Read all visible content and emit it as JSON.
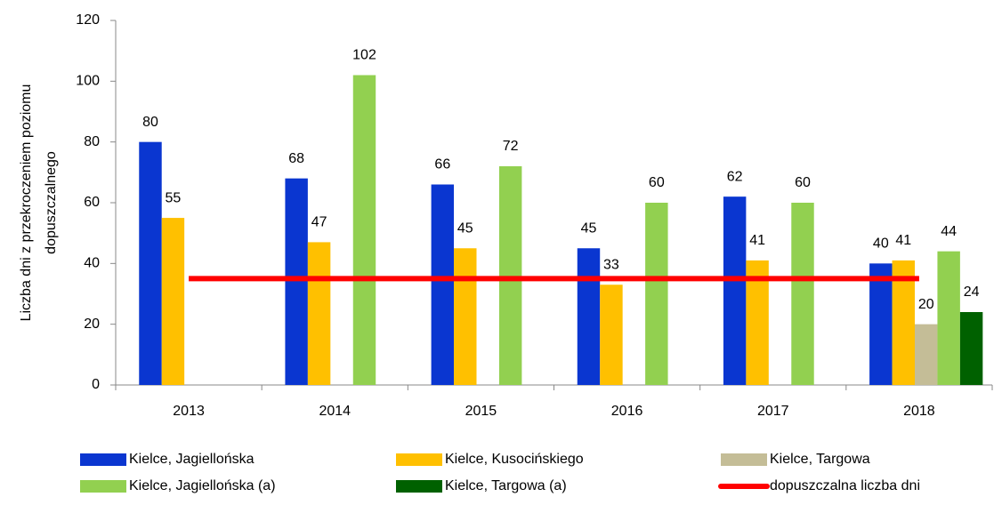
{
  "chart_data": {
    "type": "bar",
    "y_label": [
      "Liczba dni z przekroczeniem poziomu",
      "dopuszczalnego"
    ],
    "categories": [
      "2013",
      "2014",
      "2015",
      "2016",
      "2017",
      "2018"
    ],
    "series": [
      {
        "name": "Kielce, Jagiellońska",
        "color": "#0a36d0",
        "values": [
          80,
          68,
          66,
          45,
          62,
          40
        ]
      },
      {
        "name": "Kielce, Kusocińskiego",
        "color": "#ffc000",
        "values": [
          55,
          47,
          45,
          33,
          41,
          41
        ]
      },
      {
        "name": "Kielce, Targowa",
        "color": "#c4bd97",
        "values": [
          null,
          null,
          null,
          null,
          null,
          20
        ]
      },
      {
        "name": "Kielce, Jagiellońska (a)",
        "color": "#92d050",
        "values": [
          null,
          102,
          72,
          60,
          60,
          44
        ]
      },
      {
        "name": "Kielce, Targowa (a)",
        "color": "#006100",
        "values": [
          null,
          null,
          null,
          null,
          null,
          24
        ]
      },
      {
        "name": "dopuszczalna liczba dni",
        "color": "#ff0000",
        "type": "line",
        "values": [
          35,
          35,
          35,
          35,
          35,
          35
        ]
      }
    ],
    "ylim": [
      0,
      120
    ],
    "yticks": [
      0,
      20,
      40,
      60,
      80,
      100,
      120
    ],
    "data_labels": true
  }
}
